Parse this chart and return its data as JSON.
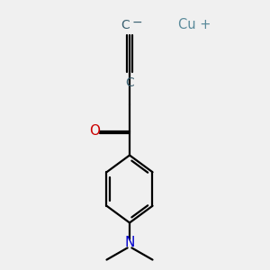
{
  "bg_color": "#f0f0f0",
  "bond_color": "#000000",
  "oxygen_color": "#cc0000",
  "nitrogen_color": "#0000cc",
  "carbon_color": "#3a6070",
  "copper_color": "#5a8a9a",
  "cu_label": "Cu +",
  "o_label": "O",
  "n_label": "N",
  "line_width": 1.6,
  "figsize": [
    3.0,
    3.0
  ],
  "dpi": 100,
  "xlim": [
    0,
    10
  ],
  "ylim": [
    0,
    10
  ]
}
